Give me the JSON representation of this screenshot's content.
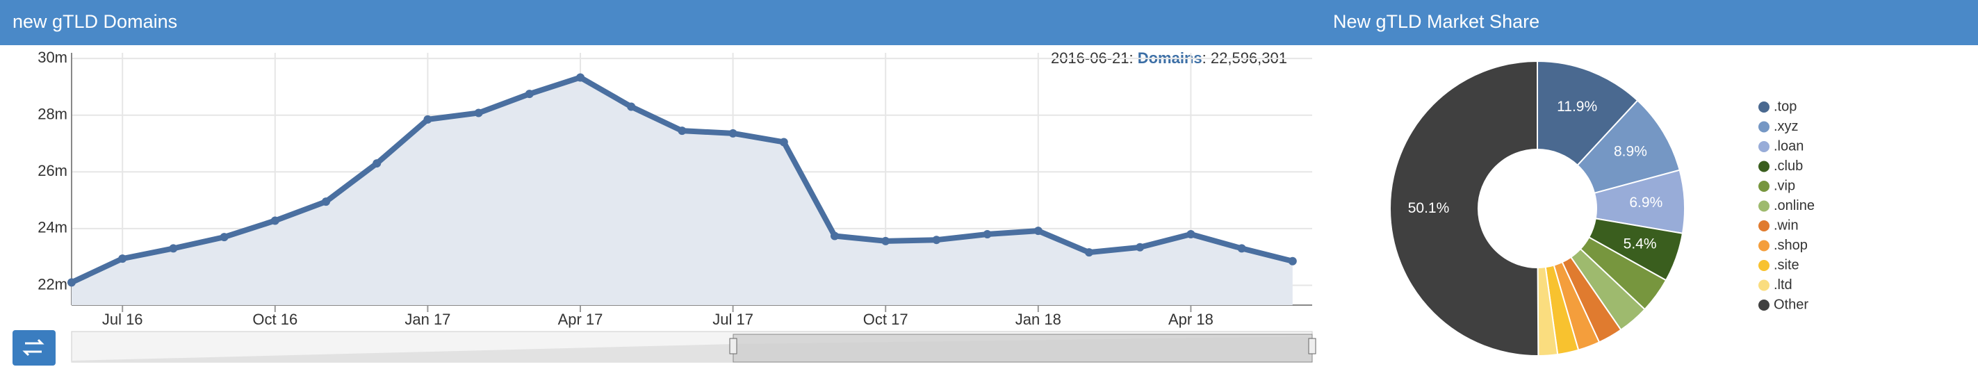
{
  "header": {
    "left_title": "new gTLD Domains",
    "right_title": "New gTLD Market Share"
  },
  "chart_data": [
    {
      "type": "line",
      "annotation": {
        "date": "2016-06-21",
        "label": "Domains",
        "value": "22,596,301"
      },
      "x": [
        "2016-06",
        "2016-07",
        "2016-08",
        "2016-09",
        "2016-10",
        "2016-11",
        "2016-12",
        "2017-01",
        "2017-02",
        "2017-03",
        "2017-04",
        "2017-05",
        "2017-06",
        "2017-07",
        "2017-08",
        "2017-09",
        "2017-10",
        "2017-11",
        "2017-12",
        "2018-01",
        "2018-02",
        "2018-03",
        "2018-04",
        "2018-05",
        "2018-06"
      ],
      "series": [
        {
          "name": "Domains",
          "color": "#4a6fa0",
          "values": [
            22100000,
            22940000,
            23300000,
            23700000,
            24280000,
            24950000,
            26300000,
            27850000,
            28080000,
            28750000,
            29330000,
            28300000,
            27450000,
            27360000,
            27050000,
            23740000,
            23560000,
            23600000,
            23800000,
            23920000,
            23160000,
            23340000,
            23800000,
            23300000,
            22850000
          ]
        }
      ],
      "xticks": [
        {
          "value": "2016-07",
          "label": "Jul 16"
        },
        {
          "value": "2016-10",
          "label": "Oct 16"
        },
        {
          "value": "2017-01",
          "label": "Jan 17"
        },
        {
          "value": "2017-04",
          "label": "Apr 17"
        },
        {
          "value": "2017-07",
          "label": "Jul 17"
        },
        {
          "value": "2017-10",
          "label": "Oct 17"
        },
        {
          "value": "2018-01",
          "label": "Jan 18"
        },
        {
          "value": "2018-04",
          "label": "Apr 18"
        }
      ],
      "ylim": [
        21300000,
        30200000
      ],
      "yticks": [
        {
          "value": 22000000,
          "label": "22m"
        },
        {
          "value": 24000000,
          "label": "24m"
        },
        {
          "value": 26000000,
          "label": "26m"
        },
        {
          "value": 28000000,
          "label": "28m"
        },
        {
          "value": 30000000,
          "label": "30m"
        }
      ],
      "grid": true
    },
    {
      "type": "pie",
      "categories": [
        ".top",
        ".xyz",
        ".loan",
        ".club",
        ".vip",
        ".online",
        ".win",
        ".shop",
        ".site",
        ".ltd",
        "Other"
      ],
      "values": [
        11.9,
        8.9,
        6.9,
        5.4,
        3.9,
        3.4,
        2.7,
        2.4,
        2.3,
        2.1,
        50.1
      ],
      "value_labels": [
        "11.9%",
        "8.9%",
        "6.9%",
        "5.4%",
        null,
        null,
        null,
        null,
        null,
        null,
        "50.1%"
      ],
      "colors": [
        "#4a6990",
        "#7597c4",
        "#98acd8",
        "#3a5e1e",
        "#77963e",
        "#9eba6e",
        "#e07b2f",
        "#f49e3c",
        "#f8c22f",
        "#fadd7f",
        "#404040"
      ],
      "legend": "right"
    }
  ]
}
